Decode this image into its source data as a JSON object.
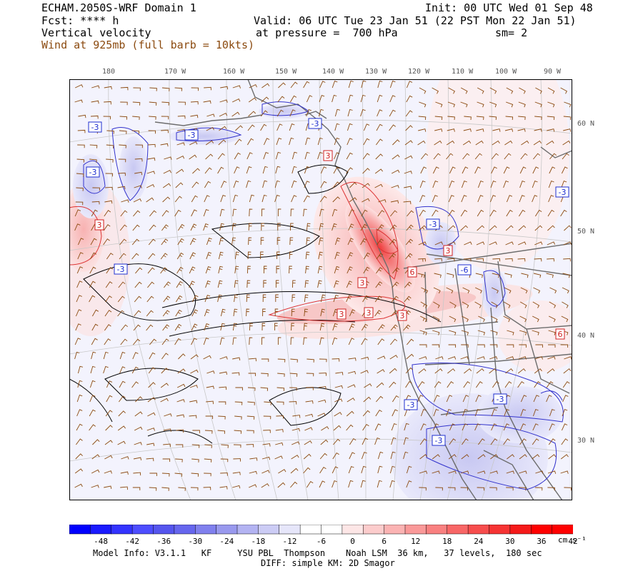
{
  "header": {
    "model": "ECHAM.2050S-WRF Domain 1",
    "init": "Init: 00 UTC Wed 01 Sep 48",
    "fcst": "Fcst: **** h",
    "valid": "Valid: 06 UTC Tue 23 Jan 51 (22 PST Mon 22 Jan 51)",
    "field": "Vertical velocity",
    "pressure": "at pressure =  700 hPa",
    "smoothing": "sm= 2",
    "wind": "Wind at 925mb (full barb = 10kts)"
  },
  "longitude_labels": [
    "180",
    "170 W",
    "160 W",
    "150 W",
    "140 W",
    "130 W",
    "120 W",
    "110 W",
    "100 W",
    "90 W"
  ],
  "latitude_labels": [
    "60 N",
    "50 N",
    "40 N",
    "30 N"
  ],
  "contour_labels": [
    "-3",
    "-3",
    "-3",
    "-3",
    "-3",
    "-3",
    "-6",
    "-3",
    "-3",
    "-3",
    "-3",
    "3",
    "3",
    "3",
    "3",
    "6",
    "3",
    "6",
    "3",
    "3"
  ],
  "colorbar": {
    "ticks": [
      "-48",
      "-42",
      "-36",
      "-30",
      "-24",
      "-18",
      "-12",
      "-6",
      "0",
      "6",
      "12",
      "18",
      "24",
      "30",
      "36",
      "42"
    ],
    "unit": "cm s⁻¹",
    "colors": [
      "#0000ff",
      "#1a1aff",
      "#3333ff",
      "#4d4dff",
      "#5555ee",
      "#6666ee",
      "#8080ee",
      "#9999ee",
      "#b3b3f2",
      "#ccccf5",
      "#e6e6fa",
      "#ffffff",
      "#ffffff",
      "#fde6e6",
      "#fccccc",
      "#fbb3b3",
      "#fa9999",
      "#f98080",
      "#f86666",
      "#f74d4d",
      "#f63333",
      "#f51a1a",
      "#ff0000",
      "#ff0000"
    ]
  },
  "footer": {
    "line1": "Model Info: V3.1.1   KF     YSU PBL  Thompson    Noah LSM  36 km,   37 levels,  180 sec",
    "line2": "DIFF: simple KM: 2D Smagor"
  }
}
